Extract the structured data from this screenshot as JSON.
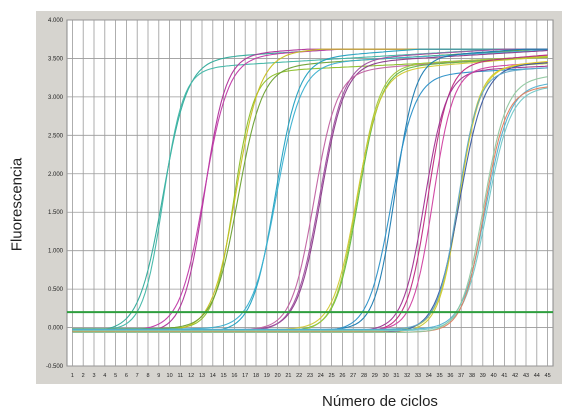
{
  "chart_data": {
    "type": "line",
    "xlabel": "Número de ciclos",
    "ylabel": "Fluorescencia",
    "xlim": [
      0.5,
      45.5
    ],
    "ylim": [
      -0.5,
      4.0
    ],
    "x_ticks": [
      "1",
      "2",
      "3",
      "4",
      "5",
      "6",
      "7",
      "8",
      "9",
      "10",
      "11",
      "12",
      "13",
      "14",
      "15",
      "16",
      "17",
      "18",
      "19",
      "20",
      "21",
      "22",
      "23",
      "24",
      "25",
      "26",
      "27",
      "28",
      "29",
      "30",
      "31",
      "32",
      "33",
      "34",
      "35",
      "36",
      "37",
      "38",
      "39",
      "40",
      "41",
      "42",
      "43",
      "44",
      "45"
    ],
    "y_ticks": [
      "-0.500",
      "0.000",
      "0.500",
      "1.000",
      "1.500",
      "2.000",
      "2.500",
      "3.000",
      "3.500",
      "4.000"
    ],
    "y_tick_values": [
      -0.5,
      0,
      0.5,
      1.0,
      1.5,
      2.0,
      2.5,
      3.0,
      3.5,
      4.0
    ],
    "grid": true,
    "threshold": 0.2,
    "threshold_color": "#2e9e3e",
    "series_groups": [
      {
        "ct": 7.8,
        "plateau": 3.45,
        "colors": [
          "#2eaa9a",
          "#40b6a6"
        ]
      },
      {
        "ct": 11.8,
        "plateau": 3.45,
        "colors": [
          "#b0309a",
          "#c03aa8"
        ]
      },
      {
        "ct": 14.6,
        "plateau": 3.42,
        "colors": [
          "#8cbf28",
          "#c8c020",
          "#6aa030"
        ]
      },
      {
        "ct": 18.4,
        "plateau": 3.45,
        "colors": [
          "#20a0c0",
          "#3ab0d0"
        ]
      },
      {
        "ct": 22.1,
        "plateau": 3.42,
        "colors": [
          "#8a3a8a",
          "#a050a0",
          "#c060a0"
        ]
      },
      {
        "ct": 25.5,
        "plateau": 3.4,
        "colors": [
          "#60b840",
          "#a0c838",
          "#d0c830"
        ]
      },
      {
        "ct": 28.9,
        "plateau": 3.38,
        "colors": [
          "#1a7ab0",
          "#2a90c8"
        ]
      },
      {
        "ct": 32.4,
        "plateau": 3.35,
        "colors": [
          "#c02880",
          "#a03090",
          "#d040a0"
        ]
      },
      {
        "ct": 35.5,
        "plateau": 3.3,
        "colors": [
          "#c8c830",
          "#e0d020",
          "#3a5aa0",
          "#60a8c8"
        ]
      },
      {
        "ct": 37.8,
        "plateau": 3.2,
        "colors": [
          "#70c8c8",
          "#50b0d0",
          "#e08060",
          "#90c8a0"
        ]
      }
    ]
  }
}
